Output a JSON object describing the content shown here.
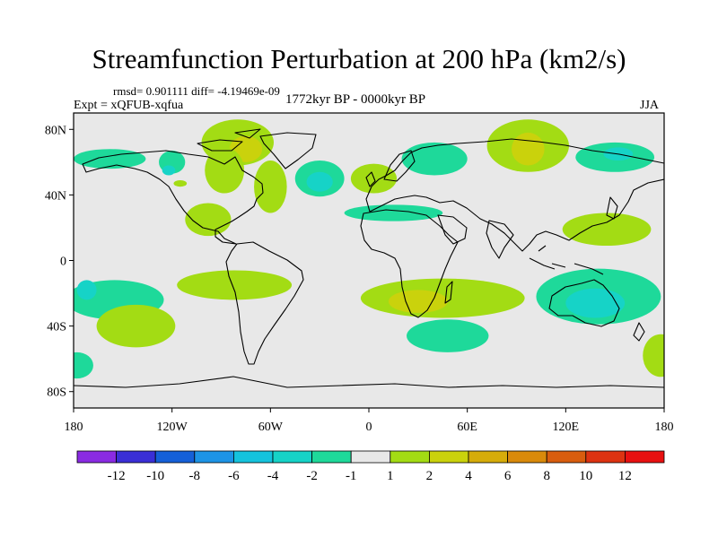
{
  "title": "Streamfunction Perturbation at 200 hPa (km2/s)",
  "stats_text": "rmsd= 0.901111 diff= -4.19469e-09",
  "left_label": "Expt = xQFUB-xqfua",
  "center_label": "1772kyr BP - 0000kyr BP",
  "right_label": "JJA",
  "map": {
    "lon_range": [
      -180,
      180
    ],
    "lat_range": [
      -90,
      90
    ],
    "lat_ticks": [
      {
        "value": 80,
        "label": "80N"
      },
      {
        "value": 40,
        "label": "40N"
      },
      {
        "value": 0,
        "label": "0"
      },
      {
        "value": -40,
        "label": "40S"
      },
      {
        "value": -80,
        "label": "80S"
      }
    ],
    "lon_ticks": [
      {
        "value": -180,
        "label": "180"
      },
      {
        "value": -120,
        "label": "120W"
      },
      {
        "value": -60,
        "label": "60W"
      },
      {
        "value": 0,
        "label": "0"
      },
      {
        "value": 60,
        "label": "60E"
      },
      {
        "value": 120,
        "label": "120E"
      },
      {
        "value": 180,
        "label": "180"
      }
    ],
    "background_color": "#e8e8e8"
  },
  "colorbar": {
    "colors": [
      "#8a2be2",
      "#3a2fd6",
      "#1560d8",
      "#1d94e6",
      "#15c3dd",
      "#16d3c7",
      "#1ed99a",
      "#e8e8e8",
      "#a3dc14",
      "#cad20c",
      "#d6ac0a",
      "#d98a0b",
      "#d85d0e",
      "#dd3311",
      "#e81010"
    ],
    "labels": [
      "-12",
      "-10",
      "-8",
      "-6",
      "-4",
      "-2",
      "-1",
      "1",
      "2",
      "4",
      "6",
      "8",
      "10",
      "12"
    ]
  },
  "anomalies": [
    {
      "lon": -80,
      "lat": 72,
      "rlon": 22,
      "rlat": 14,
      "level": 2
    },
    {
      "lon": -75,
      "lat": 68,
      "rlon": 10,
      "rlat": 8,
      "level": 4
    },
    {
      "lon": -88,
      "lat": 55,
      "rlon": 12,
      "rlat": 14,
      "level": 2
    },
    {
      "lon": -60,
      "lat": 45,
      "rlon": 10,
      "rlat": 16,
      "level": 2
    },
    {
      "lon": -98,
      "lat": 25,
      "rlon": 14,
      "rlat": 10,
      "level": 2
    },
    {
      "lon": -30,
      "lat": 50,
      "rlon": 15,
      "rlat": 11,
      "level": -1
    },
    {
      "lon": -30,
      "lat": 48,
      "rlon": 8,
      "rlat": 6,
      "level": -2
    },
    {
      "lon": -120,
      "lat": 60,
      "rlon": 8,
      "rlat": 7,
      "level": -1
    },
    {
      "lon": -122,
      "lat": 55,
      "rlon": 4,
      "rlat": 3,
      "level": -2
    },
    {
      "lon": -158,
      "lat": 62,
      "rlon": 22,
      "rlat": 6,
      "level": -1
    },
    {
      "lon": -115,
      "lat": 47,
      "rlon": 4,
      "rlat": 2,
      "level": 2
    },
    {
      "lon": 3,
      "lat": 50,
      "rlon": 14,
      "rlat": 9,
      "level": 2
    },
    {
      "lon": 40,
      "lat": 62,
      "rlon": 20,
      "rlat": 10,
      "level": -1
    },
    {
      "lon": 97,
      "lat": 70,
      "rlon": 25,
      "rlat": 16,
      "level": 2
    },
    {
      "lon": 97,
      "lat": 68,
      "rlon": 10,
      "rlat": 10,
      "level": 4
    },
    {
      "lon": 150,
      "lat": 63,
      "rlon": 24,
      "rlat": 9,
      "level": -1
    },
    {
      "lon": 152,
      "lat": 65,
      "rlon": 9,
      "rlat": 4,
      "level": -2
    },
    {
      "lon": 145,
      "lat": 19,
      "rlon": 27,
      "rlat": 10,
      "level": 2
    },
    {
      "lon": 15,
      "lat": 29,
      "rlon": 30,
      "rlat": 5,
      "level": -1
    },
    {
      "lon": -155,
      "lat": -24,
      "rlon": 30,
      "rlat": 12,
      "level": -1
    },
    {
      "lon": -172,
      "lat": -18,
      "rlon": 6,
      "rlat": 6,
      "level": -2
    },
    {
      "lon": -82,
      "lat": -15,
      "rlon": 35,
      "rlat": 9,
      "level": 2
    },
    {
      "lon": -142,
      "lat": -40,
      "rlon": 24,
      "rlat": 13,
      "level": 2
    },
    {
      "lon": 45,
      "lat": -23,
      "rlon": 50,
      "rlat": 12,
      "level": 2
    },
    {
      "lon": 30,
      "lat": -25,
      "rlon": 18,
      "rlat": 7,
      "level": 4
    },
    {
      "lon": 48,
      "lat": -46,
      "rlon": 25,
      "rlat": 10,
      "level": -1
    },
    {
      "lon": 140,
      "lat": -22,
      "rlon": 38,
      "rlat": 17,
      "level": -1
    },
    {
      "lon": 138,
      "lat": -26,
      "rlon": 18,
      "rlat": 9,
      "level": -2
    },
    {
      "lon": -178,
      "lat": -64,
      "rlon": 10,
      "rlat": 8,
      "level": -1
    },
    {
      "lon": 178,
      "lat": -58,
      "rlon": 11,
      "rlat": 13,
      "level": 2
    }
  ]
}
